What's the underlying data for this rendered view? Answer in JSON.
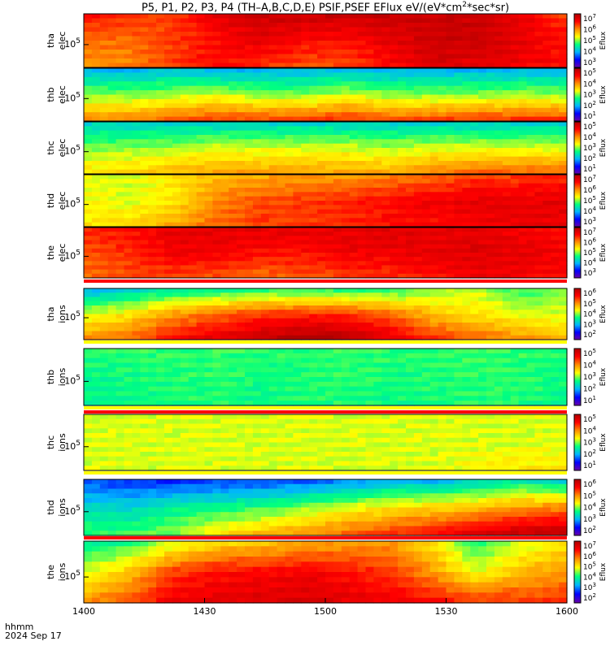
{
  "title": {
    "text_before_sup1": "P5, P1, P2, P3, P4 (TH–A,B,C,D,E) PSIF,PSEF EFlux eV/(eV*cm",
    "sup1": "2",
    "text_after_sup1": "*sec*sr)"
  },
  "footer": {
    "line1": "hhmm",
    "line2": "2024 Sep 17"
  },
  "chart_data": {
    "type": "heatmap",
    "x_range": [
      "14:00",
      "16:00"
    ],
    "x_ticks": [
      "1400",
      "1430",
      "1500",
      "1530",
      "1600"
    ],
    "colorbar_label": "Eflux",
    "colormap": [
      "#6a00a8",
      "#0000ff",
      "#00b4ff",
      "#00ff80",
      "#ffff00",
      "#ff8c00",
      "#ff0000",
      "#b00000"
    ],
    "panels": [
      {
        "probe": "tha",
        "species": "elec",
        "ytick": "10",
        "ytick_exp": "5",
        "cbar_ticks": [
          "10^7",
          "10^6",
          "10^5",
          "10^4",
          "10^3"
        ],
        "heat": [
          [
            0.85,
            0.8,
            0.8,
            0.9,
            0.95,
            0.95,
            0.95,
            0.95,
            0.95,
            0.95,
            0.9,
            0.8
          ],
          [
            0.75,
            0.75,
            0.8,
            0.85,
            0.9,
            0.85,
            0.85,
            0.9,
            0.95,
            0.95,
            0.9,
            0.85
          ],
          [
            0.7,
            0.72,
            0.8,
            0.85,
            0.82,
            0.78,
            0.78,
            0.85,
            0.92,
            0.9,
            0.88,
            0.85
          ]
        ]
      },
      {
        "probe": "thb",
        "species": "elec",
        "ytick": "10",
        "ytick_exp": "5",
        "cbar_ticks": [
          "10^5",
          "10^4",
          "10^3",
          "10^2",
          "10^1"
        ],
        "heat": [
          [
            0.3,
            0.3,
            0.32,
            0.3,
            0.3,
            0.3,
            0.32,
            0.3,
            0.3,
            0.3,
            0.3,
            0.3
          ],
          [
            0.5,
            0.5,
            0.52,
            0.55,
            0.5,
            0.5,
            0.55,
            0.5,
            0.5,
            0.5,
            0.52,
            0.5
          ],
          [
            0.7,
            0.72,
            0.75,
            0.78,
            0.78,
            0.78,
            0.8,
            0.76,
            0.78,
            0.8,
            0.8,
            0.8
          ]
        ]
      },
      {
        "probe": "thc",
        "species": "elec",
        "ytick": "10",
        "ytick_exp": "5",
        "cbar_ticks": [
          "10^5",
          "10^4",
          "10^3",
          "10^2",
          "10^1"
        ],
        "heat": [
          [
            0.35,
            0.35,
            0.35,
            0.35,
            0.35,
            0.35,
            0.35,
            0.35,
            0.35,
            0.35,
            0.35,
            0.35
          ],
          [
            0.5,
            0.5,
            0.52,
            0.55,
            0.55,
            0.55,
            0.55,
            0.52,
            0.55,
            0.55,
            0.55,
            0.55
          ],
          [
            0.6,
            0.62,
            0.66,
            0.68,
            0.68,
            0.68,
            0.68,
            0.66,
            0.72,
            0.75,
            0.75,
            0.75
          ]
        ]
      },
      {
        "probe": "thd",
        "species": "elec",
        "ytick": "10",
        "ytick_exp": "5",
        "cbar_ticks": [
          "10^7",
          "10^6",
          "10^5",
          "10^4",
          "10^3"
        ],
        "heat": [
          [
            0.55,
            0.55,
            0.6,
            0.65,
            0.68,
            0.7,
            0.7,
            0.72,
            0.75,
            0.8,
            0.8,
            0.82
          ],
          [
            0.58,
            0.55,
            0.6,
            0.72,
            0.78,
            0.8,
            0.82,
            0.85,
            0.88,
            0.9,
            0.9,
            0.9
          ],
          [
            0.6,
            0.62,
            0.68,
            0.75,
            0.8,
            0.8,
            0.82,
            0.85,
            0.85,
            0.88,
            0.88,
            0.9
          ]
        ]
      },
      {
        "probe": "the",
        "species": "elec",
        "ytick": "10",
        "ytick_exp": "5",
        "cbar_ticks": [
          "10^7",
          "10^6",
          "10^5",
          "10^4",
          "10^3"
        ],
        "heat": [
          [
            0.82,
            0.85,
            0.9,
            0.9,
            0.9,
            0.9,
            0.9,
            0.92,
            0.9,
            0.9,
            0.88,
            0.85
          ],
          [
            0.78,
            0.82,
            0.88,
            0.88,
            0.85,
            0.85,
            0.88,
            0.88,
            0.9,
            0.92,
            0.9,
            0.88
          ],
          [
            0.75,
            0.78,
            0.8,
            0.78,
            0.75,
            0.78,
            0.8,
            0.82,
            0.85,
            0.88,
            0.88,
            0.85
          ]
        ]
      },
      {
        "probe": "tha",
        "species": "ions",
        "ytick": "10",
        "ytick_exp": "5",
        "cbar_ticks": [
          "10^6",
          "10^5",
          "10^4",
          "10^3",
          "10^2"
        ],
        "heat": [
          [
            0.3,
            0.35,
            0.4,
            0.42,
            0.45,
            0.45,
            0.45,
            0.45,
            0.5,
            0.55,
            0.45,
            0.5
          ],
          [
            0.55,
            0.6,
            0.7,
            0.75,
            0.8,
            0.82,
            0.8,
            0.75,
            0.65,
            0.6,
            0.55,
            0.55
          ],
          [
            0.7,
            0.75,
            0.85,
            0.9,
            0.95,
            1.0,
            0.98,
            0.9,
            0.8,
            0.75,
            0.7,
            0.65
          ]
        ]
      },
      {
        "probe": "thb",
        "species": "ions",
        "ytick": "10",
        "ytick_exp": "5",
        "cbar_ticks": [
          "10^5",
          "10^4",
          "10^3",
          "10^2",
          "10^1"
        ],
        "heat": [
          [
            0.45,
            0.45,
            0.45,
            0.45,
            0.45,
            0.45,
            0.45,
            0.45,
            0.45,
            0.45,
            0.45,
            0.45
          ],
          [
            0.42,
            0.43,
            0.44,
            0.45,
            0.43,
            0.44,
            0.45,
            0.43,
            0.44,
            0.45,
            0.45,
            0.43
          ],
          [
            0.42,
            0.42,
            0.44,
            0.44,
            0.42,
            0.44,
            0.44,
            0.42,
            0.44,
            0.44,
            0.44,
            0.42
          ]
        ]
      },
      {
        "probe": "thc",
        "species": "ions",
        "ytick": "10",
        "ytick_exp": "5",
        "cbar_ticks": [
          "10^5",
          "10^4",
          "10^3",
          "10^2",
          "10^1"
        ],
        "heat": [
          [
            0.55,
            0.55,
            0.55,
            0.55,
            0.55,
            0.55,
            0.55,
            0.55,
            0.55,
            0.55,
            0.55,
            0.55
          ],
          [
            0.55,
            0.55,
            0.55,
            0.55,
            0.55,
            0.55,
            0.55,
            0.55,
            0.55,
            0.55,
            0.55,
            0.55
          ],
          [
            0.55,
            0.55,
            0.55,
            0.55,
            0.55,
            0.55,
            0.55,
            0.55,
            0.55,
            0.58,
            0.6,
            0.6
          ]
        ]
      },
      {
        "probe": "thd",
        "species": "ions",
        "ytick": "10",
        "ytick_exp": "5",
        "cbar_ticks": [
          "10^6",
          "10^5",
          "10^4",
          "10^3",
          "10^2"
        ],
        "heat": [
          [
            0.2,
            0.18,
            0.18,
            0.2,
            0.2,
            0.22,
            0.25,
            0.3,
            0.3,
            0.35,
            0.4,
            0.35
          ],
          [
            0.35,
            0.35,
            0.4,
            0.42,
            0.45,
            0.5,
            0.55,
            0.6,
            0.62,
            0.65,
            0.7,
            0.72
          ],
          [
            0.45,
            0.45,
            0.5,
            0.6,
            0.65,
            0.7,
            0.75,
            0.8,
            0.85,
            0.9,
            0.95,
            0.98
          ]
        ]
      },
      {
        "probe": "the",
        "species": "ions",
        "ytick": "10",
        "ytick_exp": "5",
        "cbar_ticks": [
          "10^7",
          "10^6",
          "10^5",
          "10^4",
          "10^3",
          "10^2"
        ],
        "heat": [
          [
            0.4,
            0.45,
            0.55,
            0.62,
            0.65,
            0.68,
            0.7,
            0.7,
            0.6,
            0.45,
            0.55,
            0.6
          ],
          [
            0.55,
            0.65,
            0.8,
            0.85,
            0.85,
            0.88,
            0.85,
            0.8,
            0.7,
            0.55,
            0.65,
            0.7
          ],
          [
            0.7,
            0.78,
            0.88,
            0.9,
            0.92,
            0.92,
            0.9,
            0.88,
            0.85,
            0.8,
            0.8,
            0.8
          ]
        ]
      }
    ]
  }
}
